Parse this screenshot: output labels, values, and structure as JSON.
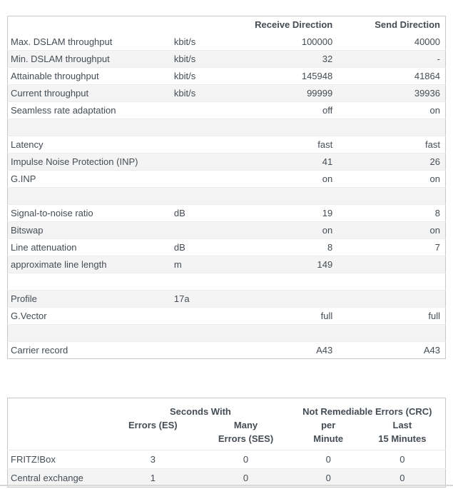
{
  "colors": {
    "text": "#454c54",
    "table_border": "#c8c8c8",
    "row_alt_background": "#f4f4f4",
    "row_separator": "#ebebeb",
    "bottom_divider": "#d5dad4"
  },
  "dsl_table": {
    "headers": {
      "receive": "Receive Direction",
      "send": "Send Direction"
    },
    "rows": [
      {
        "label": "Max. DSLAM throughput",
        "unit": "kbit/s",
        "receive": "100000",
        "send": "40000"
      },
      {
        "label": "Min. DSLAM throughput",
        "unit": "kbit/s",
        "receive": "32",
        "send": "-"
      },
      {
        "label": "Attainable throughput",
        "unit": "kbit/s",
        "receive": "145948",
        "send": "41864"
      },
      {
        "label": "Current throughput",
        "unit": "kbit/s",
        "receive": "99999",
        "send": "39936"
      },
      {
        "label": "Seamless rate adaptation",
        "unit": "",
        "receive": "off",
        "send": "on"
      },
      {
        "label": "",
        "unit": "",
        "receive": "",
        "send": ""
      },
      {
        "label": "Latency",
        "unit": "",
        "receive": "fast",
        "send": "fast"
      },
      {
        "label": "Impulse Noise Protection (INP)",
        "unit": "",
        "receive": "41",
        "send": "26"
      },
      {
        "label": "G.INP",
        "unit": "",
        "receive": "on",
        "send": "on"
      },
      {
        "label": "",
        "unit": "",
        "receive": "",
        "send": ""
      },
      {
        "label": "Signal-to-noise ratio",
        "unit": "dB",
        "receive": "19",
        "send": "8"
      },
      {
        "label": "Bitswap",
        "unit": "",
        "receive": "on",
        "send": "on"
      },
      {
        "label": "Line attenuation",
        "unit": "dB",
        "receive": "8",
        "send": "7"
      },
      {
        "label": "approximate line length",
        "unit": "m",
        "receive": "149",
        "send": ""
      },
      {
        "label": "",
        "unit": "",
        "receive": "",
        "send": ""
      },
      {
        "label": "Profile",
        "unit": "17a",
        "receive": "",
        "send": ""
      },
      {
        "label": "G.Vector",
        "unit": "",
        "receive": "full",
        "send": "full"
      },
      {
        "label": "",
        "unit": "",
        "receive": "",
        "send": ""
      },
      {
        "label": "Carrier record",
        "unit": "",
        "receive": "A43",
        "send": "A43"
      }
    ]
  },
  "error_table": {
    "group_headers": {
      "seconds_with": "Seconds With",
      "crc": "Not Remediable Errors (CRC)"
    },
    "col_headers": [
      "Errors (ES)",
      "Many\nErrors (SES)",
      "per\nMinute",
      "Last\n15 Minutes"
    ],
    "rows": [
      {
        "label": "FRITZ!Box",
        "values": [
          "3",
          "0",
          "0",
          "0"
        ]
      },
      {
        "label": "Central exchange",
        "values": [
          "1",
          "0",
          "0",
          "0"
        ]
      }
    ]
  }
}
